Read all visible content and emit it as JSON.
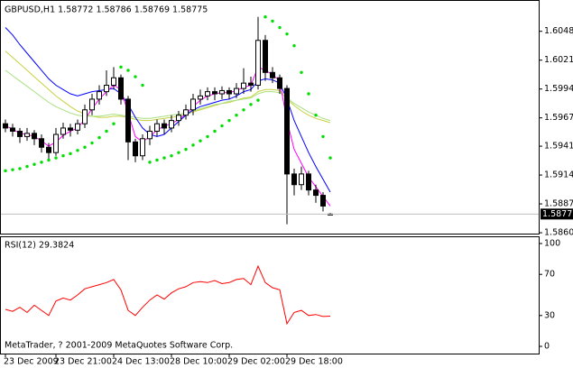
{
  "chart_data": [
    {
      "type": "candlestick",
      "title": "GBPUSD,H1  1.58772 1.58786 1.58769 1.58775",
      "xlim": [
        -0.75,
        73.875
      ],
      "ylim": [
        1.58592,
        1.60744
      ],
      "yticks": [
        1.60485,
        1.60215,
        1.59945,
        1.59675,
        {
          "value": 1.5941,
          "label": "1.59410"
        },
        {
          "value": 1.5914,
          "label": "1.59140"
        },
        {
          "value": 1.5887,
          "label": "1.58870"
        },
        {
          "value": 1.586,
          "label": "1.58600"
        }
      ],
      "current_price": 1.58775,
      "bull_color": "#ffffff",
      "bear_color": "#000000",
      "wick_color": "#000000",
      "open": [
        1.5962,
        1.5958,
        1.5955,
        1.595,
        1.5953,
        1.5948,
        1.594,
        1.5935,
        1.5952,
        1.5958,
        1.5956,
        1.5962,
        1.5975,
        1.5985,
        1.5992,
        1.5998,
        1.6005,
        1.5985,
        1.5945,
        1.5932,
        1.5948,
        1.5955,
        1.5962,
        1.5958,
        1.5965,
        1.597,
        1.5975,
        1.5985,
        1.5988,
        1.5992,
        1.599,
        1.5993,
        1.599,
        1.5995,
        1.6,
        1.5998,
        1.604,
        1.601,
        1.6005,
        1.5995,
        1.5915,
        1.5905,
        1.5915,
        1.59,
        1.5895,
        1.58772
      ],
      "high": [
        1.5966,
        1.5962,
        1.5958,
        1.5958,
        1.5956,
        1.5952,
        1.5944,
        1.5958,
        1.5963,
        1.5962,
        1.5966,
        1.598,
        1.599,
        1.5998,
        1.6012,
        1.6015,
        1.6008,
        1.5988,
        1.5948,
        1.5952,
        1.596,
        1.5966,
        1.5966,
        1.597,
        1.5974,
        1.598,
        1.599,
        1.5994,
        1.5996,
        1.5996,
        1.5997,
        1.5996,
        1.6,
        1.6014,
        1.6006,
        1.6062,
        1.6045,
        1.6015,
        1.6008,
        1.5998,
        1.592,
        1.5922,
        1.5918,
        1.5905,
        1.5898,
        1.58786
      ],
      "low": [
        1.5954,
        1.595,
        1.5944,
        1.5946,
        1.5942,
        1.5935,
        1.5928,
        1.5932,
        1.5948,
        1.595,
        1.5952,
        1.5958,
        1.597,
        1.598,
        1.5988,
        1.5994,
        1.598,
        1.5928,
        1.5926,
        1.5928,
        1.5942,
        1.595,
        1.5952,
        1.5954,
        1.596,
        1.5966,
        1.597,
        1.598,
        1.5984,
        1.5984,
        1.5985,
        1.5985,
        1.5986,
        1.599,
        1.5992,
        1.5994,
        1.6002,
        1.6,
        1.599,
        1.5868,
        1.5895,
        1.59,
        1.5895,
        1.5888,
        1.588,
        1.58769
      ],
      "close": [
        1.5958,
        1.5955,
        1.595,
        1.5953,
        1.5948,
        1.594,
        1.5935,
        1.5952,
        1.5958,
        1.5956,
        1.5962,
        1.5975,
        1.5985,
        1.5992,
        1.5998,
        1.6005,
        1.5985,
        1.5945,
        1.5932,
        1.5948,
        1.5955,
        1.5962,
        1.5958,
        1.5965,
        1.597,
        1.5975,
        1.5985,
        1.5988,
        1.5992,
        1.599,
        1.5993,
        1.599,
        1.5995,
        1.6,
        1.5998,
        1.604,
        1.601,
        1.6005,
        1.5995,
        1.5915,
        1.5905,
        1.5915,
        1.59,
        1.5895,
        1.5885,
        1.58775
      ],
      "overlays": [
        {
          "style": "line",
          "color": "#c8d040",
          "values": [
            1.603,
            1.6024,
            1.6018,
            1.6012,
            1.6006,
            1.6,
            1.5994,
            1.5988,
            1.5983,
            1.5978,
            1.5974,
            1.5971,
            1.5969,
            1.5968,
            1.5968,
            1.5969,
            1.5969,
            1.5968,
            1.5966,
            1.5965,
            1.5965,
            1.5966,
            1.5967,
            1.5968,
            1.5969,
            1.5971,
            1.5973,
            1.5975,
            1.5977,
            1.5979,
            1.5981,
            1.5982,
            1.5984,
            1.5986,
            1.5987,
            1.5992,
            1.5994,
            1.5994,
            1.5993,
            1.5985,
            1.5979,
            1.5974,
            1.597,
            1.5967,
            1.5965,
            1.5963
          ]
        },
        {
          "style": "line",
          "color": "#a8e080",
          "values": [
            1.6012,
            1.6007,
            1.6002,
            1.5997,
            1.5992,
            1.5987,
            1.5982,
            1.5978,
            1.5975,
            1.5972,
            1.597,
            1.5969,
            1.5969,
            1.5969,
            1.597,
            1.5971,
            1.597,
            1.5969,
            1.5968,
            1.5967,
            1.5967,
            1.5968,
            1.5969,
            1.597,
            1.5971,
            1.5972,
            1.5974,
            1.5976,
            1.5978,
            1.598,
            1.5981,
            1.5983,
            1.5984,
            1.5985,
            1.5986,
            1.599,
            1.5992,
            1.5992,
            1.5991,
            1.5986,
            1.5981,
            1.5977,
            1.5973,
            1.597,
            1.5967,
            1.5965
          ]
        },
        {
          "style": "line",
          "color": "#0000ff",
          "values": [
            1.6052,
            1.6045,
            1.6036,
            1.6028,
            1.602,
            1.6012,
            1.6004,
            1.5998,
            1.5994,
            1.599,
            1.5988,
            1.599,
            1.5992,
            1.5993,
            1.5994,
            1.5995,
            1.599,
            1.598,
            1.5968,
            1.5958,
            1.5952,
            1.595,
            1.5952,
            1.5958,
            1.5964,
            1.597,
            1.5975,
            1.5978,
            1.598,
            1.5982,
            1.5984,
            1.5985,
            1.5988,
            1.5992,
            1.5994,
            1.6002,
            1.6004,
            1.6003,
            1.6,
            1.5985,
            1.5965,
            1.595,
            1.5935,
            1.5922,
            1.591,
            1.5898
          ]
        },
        {
          "style": "line",
          "color": "#ff00ff",
          "values": [
            1.596,
            1.5957,
            1.5953,
            1.5952,
            1.595,
            1.5946,
            1.5941,
            1.5945,
            1.5951,
            1.5955,
            1.5958,
            1.5966,
            1.5976,
            1.5985,
            1.5992,
            1.5998,
            1.5994,
            1.5972,
            1.595,
            1.5945,
            1.595,
            1.5956,
            1.596,
            1.5962,
            1.5966,
            1.5971,
            1.5978,
            1.5984,
            1.5988,
            1.599,
            1.5991,
            1.5991,
            1.5993,
            1.5996,
            1.5998,
            1.6015,
            1.6012,
            1.6008,
            1.6002,
            1.5965,
            1.5938,
            1.5925,
            1.5912,
            1.5903,
            1.5894,
            1.5885
          ]
        },
        {
          "style": "dots",
          "color": "#00dd00",
          "values": [
            1.5918,
            1.5919,
            1.592,
            1.5922,
            1.5924,
            1.5926,
            1.5928,
            1.593,
            1.5932,
            1.5934,
            1.5937,
            1.594,
            1.5944,
            1.5949,
            1.5955,
            1.5962,
            1.6015,
            1.6012,
            1.6006,
            1.5998,
            1.5926,
            1.5928,
            1.593,
            1.5932,
            1.5935,
            1.5938,
            1.5942,
            1.5946,
            1.595,
            1.5955,
            1.596,
            1.5965,
            1.597,
            1.5975,
            1.598,
            1.5984,
            1.6062,
            1.6058,
            1.6052,
            1.6046,
            1.6035,
            1.601,
            1.599,
            1.597,
            1.595,
            1.593
          ]
        }
      ]
    },
    {
      "type": "line",
      "title": "RSI(12) 29.3824",
      "annotation": "MetaTrader, ? 2001-2009 MetaQuotes Software Corp.",
      "xlim": [
        -0.75,
        73.875
      ],
      "xticks": [
        {
          "value": 0,
          "label": "23 Dec 2009"
        },
        {
          "value": 7,
          "label": "23 Dec 21:00"
        },
        {
          "value": 15,
          "label": "24 Dec 13:00"
        },
        {
          "value": 23,
          "label": "28 Dec 10:00"
        },
        {
          "value": 31,
          "label": "29 Dec 02:00"
        },
        {
          "value": 39,
          "label": "29 Dec 18:00"
        }
      ],
      "ylim": [
        -7,
        107
      ],
      "yticks": [
        100,
        70,
        30,
        0
      ],
      "series": [
        {
          "color": "#ff0000",
          "values": [
            36,
            34,
            38,
            33,
            40,
            35,
            30,
            44,
            47,
            45,
            50,
            56,
            58,
            60,
            62,
            65,
            55,
            35,
            30,
            38,
            45,
            50,
            46,
            52,
            56,
            58,
            62,
            63,
            62,
            64,
            61,
            62,
            65,
            66,
            60,
            78,
            62,
            57,
            55,
            22,
            33,
            35,
            30,
            31,
            29,
            29.3824
          ]
        }
      ]
    }
  ]
}
